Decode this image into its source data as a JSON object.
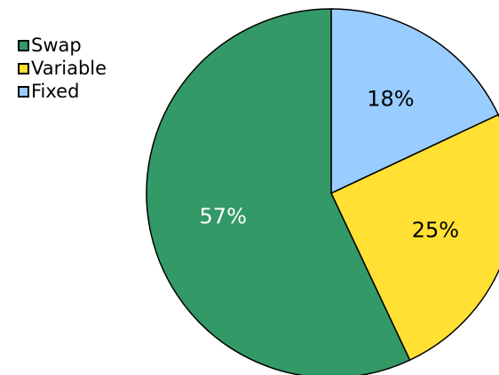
{
  "chart_data": {
    "type": "pie",
    "legend_position": "top-left",
    "slices": [
      {
        "label": "Fixed",
        "value": 18,
        "display": "18%",
        "color": "#99CCFF",
        "text_color": "#000000"
      },
      {
        "label": "Variable",
        "value": 25,
        "display": "25%",
        "color": "#FFE033",
        "text_color": "#000000"
      },
      {
        "label": "Swap",
        "value": 57,
        "display": "57%",
        "color": "#339966",
        "text_color": "#FFFFFF"
      }
    ],
    "legend": [
      "Swap",
      "Variable",
      "Fixed"
    ]
  }
}
